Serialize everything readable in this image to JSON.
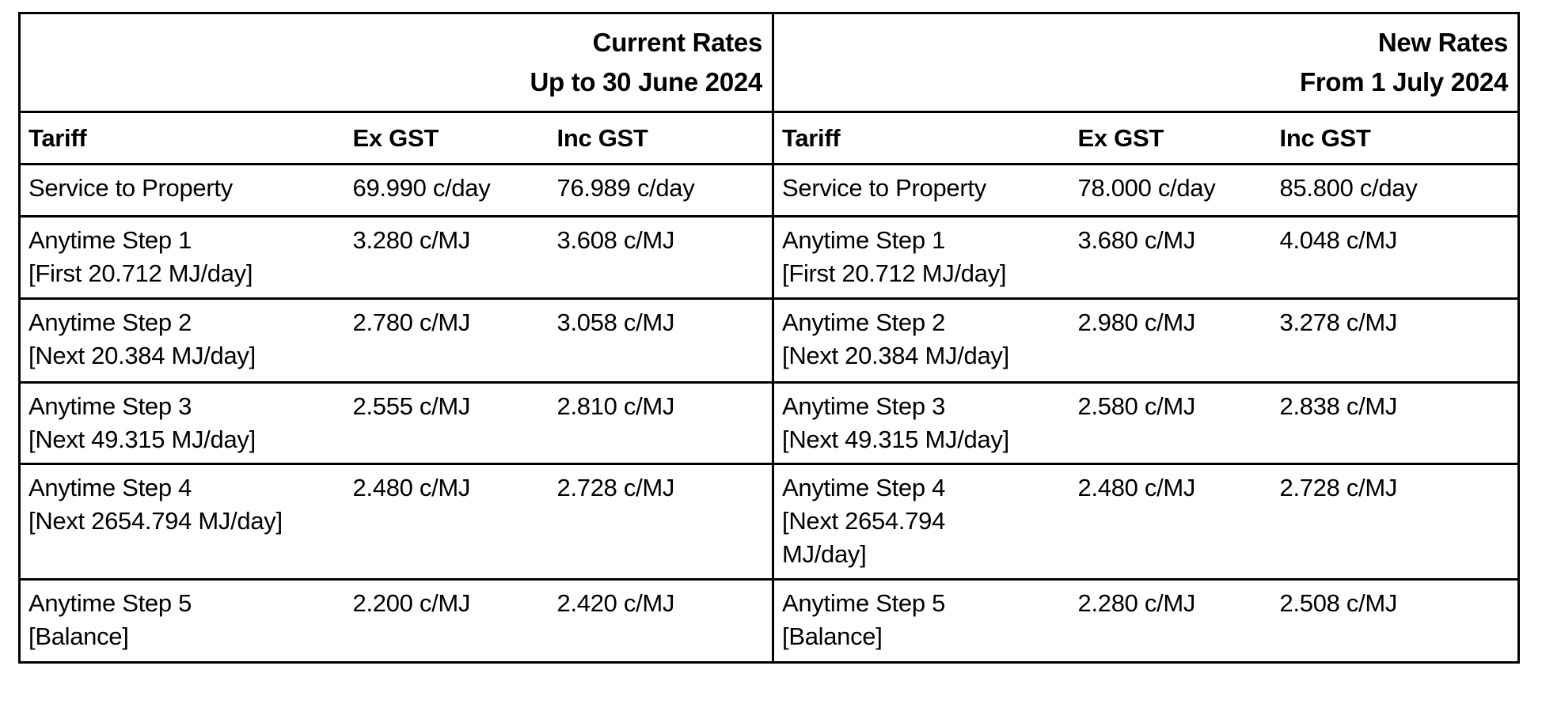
{
  "page": {
    "background_color": "#ffffff",
    "border_color": "#000000",
    "text_color": "#000000"
  },
  "left_table": {
    "header_line1": "Current Rates",
    "header_line2": "Up to 30 June 2024",
    "columns": {
      "tariff": "Tariff",
      "ex_gst": "Ex GST",
      "inc_gst": "Inc GST"
    }
  },
  "right_table": {
    "header_line1": "New Rates",
    "header_line2": "From 1 July 2024",
    "columns": {
      "tariff": "Tariff",
      "ex_gst": "Ex GST",
      "inc_gst": "Inc GST"
    }
  },
  "rows": [
    {
      "left": {
        "t0": "Service to Property",
        "ex": "69.990 c/day",
        "inc": "76.989 c/day"
      },
      "right": {
        "t0": "Service to Property",
        "ex": "78.000 c/day",
        "inc": "85.800 c/day"
      }
    },
    {
      "left": {
        "t0": "Anytime Step 1",
        "t1": "[First 20.712 MJ/day]",
        "ex": "3.280 c/MJ",
        "inc": "3.608 c/MJ"
      },
      "right": {
        "t0": "Anytime Step 1",
        "t1": "[First 20.712 MJ/day]",
        "ex": "3.680 c/MJ",
        "inc": "4.048 c/MJ"
      }
    },
    {
      "left": {
        "t0": "Anytime Step 2",
        "t1": "[Next 20.384 MJ/day]",
        "ex": "2.780 c/MJ",
        "inc": "3.058 c/MJ"
      },
      "right": {
        "t0": "Anytime Step 2",
        "t1": "[Next 20.384 MJ/day]",
        "ex": "2.980 c/MJ",
        "inc": "3.278 c/MJ"
      }
    },
    {
      "left": {
        "t0": "Anytime Step 3",
        "t1": "[Next 49.315 MJ/day]",
        "ex": "2.555 c/MJ",
        "inc": "2.810 c/MJ"
      },
      "right": {
        "t0": "Anytime Step 3",
        "t1": "[Next 49.315 MJ/day]",
        "ex": "2.580 c/MJ",
        "inc": "2.838 c/MJ"
      }
    },
    {
      "left": {
        "t0": "Anytime Step 4",
        "t1": "[Next 2654.794 MJ/day]",
        "ex": "2.480 c/MJ",
        "inc": "2.728 c/MJ"
      },
      "right": {
        "t0": "Anytime Step 4",
        "t1": "[Next 2654.794",
        "t2": "MJ/day]",
        "ex": "2.480 c/MJ",
        "inc": "2.728 c/MJ"
      }
    },
    {
      "left": {
        "t0": "Anytime Step 5",
        "t1": "[Balance]",
        "ex": "2.200 c/MJ",
        "inc": "2.420 c/MJ"
      },
      "right": {
        "t0": "Anytime Step 5",
        "t1": "[Balance]",
        "ex": "2.280 c/MJ",
        "inc": "2.508 c/MJ"
      }
    }
  ]
}
